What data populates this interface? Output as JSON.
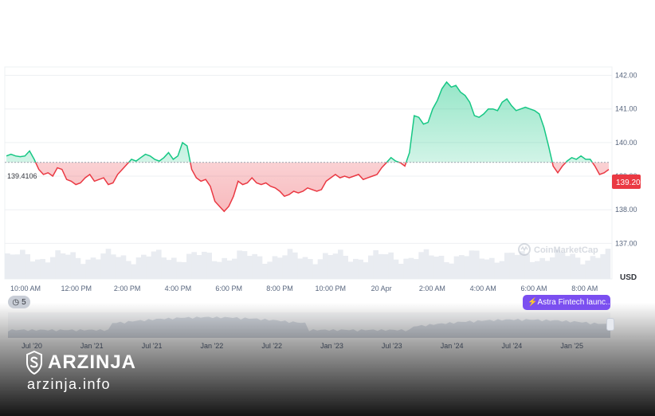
{
  "chart_data": {
    "type": "line",
    "currency": "USD",
    "reference_price": "139.4106",
    "current_price": "139.20",
    "watermark": "CoinMarketCap",
    "y_ticks": [
      "142.00",
      "141.00",
      "140.00",
      "139.00",
      "138.00",
      "137.00"
    ],
    "ylim": [
      136.7,
      142.25
    ],
    "x_ticks": [
      "10:00 AM",
      "12:00 PM",
      "2:00 PM",
      "4:00 PM",
      "6:00 PM",
      "8:00 PM",
      "10:00 PM",
      "20 Apr",
      "2:00 AM",
      "4:00 AM",
      "6:00 AM",
      "8:00 AM"
    ],
    "series": [
      {
        "values": [
          139.6,
          139.65,
          139.6,
          139.58,
          139.6,
          139.75,
          139.5,
          139.2,
          139.05,
          139.1,
          139.0,
          139.25,
          139.2,
          138.9,
          138.85,
          138.75,
          138.8,
          138.95,
          139.05,
          138.85,
          138.9,
          138.95,
          138.75,
          138.8,
          139.05,
          139.2,
          139.35,
          139.5,
          139.45,
          139.55,
          139.65,
          139.6,
          139.5,
          139.45,
          139.55,
          139.7,
          139.5,
          139.6,
          140.0,
          139.9,
          139.2,
          138.95,
          138.85,
          138.9,
          138.7,
          138.25,
          138.1,
          137.95,
          138.1,
          138.4,
          138.85,
          138.75,
          138.8,
          138.95,
          138.8,
          138.75,
          138.8,
          138.7,
          138.65,
          138.55,
          138.4,
          138.45,
          138.55,
          138.5,
          138.55,
          138.65,
          138.6,
          138.55,
          138.6,
          138.85,
          138.95,
          139.05,
          138.95,
          139.0,
          138.95,
          139.0,
          139.05,
          138.9,
          138.95,
          139.0,
          139.05,
          139.25,
          139.4,
          139.55,
          139.45,
          139.4,
          139.3,
          139.7,
          140.8,
          140.75,
          140.55,
          140.6,
          141.0,
          141.25,
          141.6,
          141.8,
          141.65,
          141.7,
          141.5,
          141.4,
          141.2,
          140.8,
          140.75,
          140.85,
          141.0,
          141.0,
          140.95,
          141.2,
          141.3,
          141.1,
          140.95,
          141.0,
          141.05,
          141.0,
          140.95,
          140.85,
          140.45,
          139.9,
          139.3,
          139.1,
          139.3,
          139.45,
          139.55,
          139.5,
          139.6,
          139.5,
          139.5,
          139.3,
          139.05,
          139.1,
          139.2
        ],
        "x_start": "10:00 AM",
        "x_end": "9:00 AM"
      }
    ],
    "overview": {
      "x_ticks": [
        "Jul '20",
        "Jan '21",
        "Jul '21",
        "Jan '22",
        "Jul '22",
        "Jan '23",
        "Jul '23",
        "Jan '24",
        "Jul '24",
        "Jan '25"
      ]
    },
    "history_count": "5",
    "event_label": "Astra Fintech launc...",
    "up_color": "#16c784",
    "down_color": "#ea3943"
  },
  "brand": {
    "name": "ARZINJA",
    "domain": "arzinja.info"
  }
}
